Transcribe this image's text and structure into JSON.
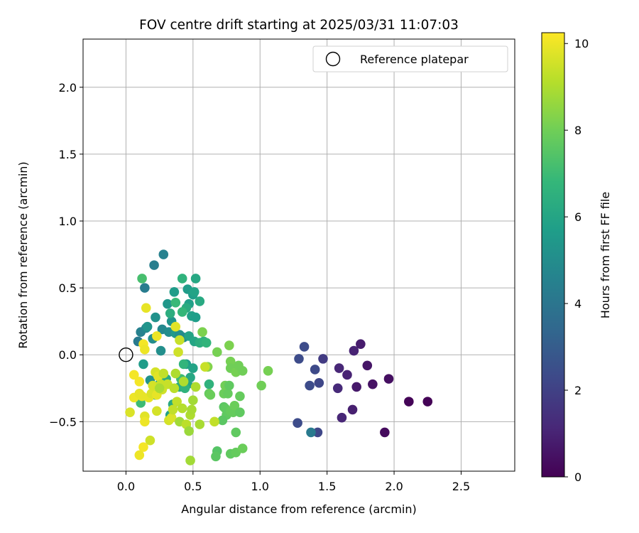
{
  "chart_data": {
    "type": "scatter",
    "title": "FOV centre drift starting at 2025/03/31 11:07:03",
    "xlabel": "Angular distance from reference (arcmin)",
    "ylabel": "Rotation from reference (arcmin)",
    "xlim": [
      -0.32,
      2.9
    ],
    "ylim": [
      -0.87,
      2.36
    ],
    "xticks": [
      0.0,
      0.5,
      1.0,
      1.5,
      2.0,
      2.5
    ],
    "xtick_labels": [
      "0.0",
      "0.5",
      "1.0",
      "1.5",
      "2.0",
      "2.5"
    ],
    "yticks": [
      -0.5,
      0.0,
      0.5,
      1.0,
      1.5,
      2.0
    ],
    "ytick_labels": [
      "−0.5",
      "0.0",
      "0.5",
      "1.0",
      "1.5",
      "2.0"
    ],
    "grid": true,
    "legend": {
      "position": "top-right",
      "entries": [
        "Reference platepar"
      ]
    },
    "reference_point": {
      "x": 0.0,
      "y": 0.0
    },
    "colorbar": {
      "label": "Hours from first FF file",
      "range": [
        0,
        10.25
      ],
      "ticks": [
        0,
        2,
        4,
        6,
        8,
        10
      ],
      "tick_labels": [
        "0",
        "2",
        "4",
        "6",
        "8",
        "10"
      ],
      "colormap": [
        "#440154",
        "#482878",
        "#3e4989",
        "#31688e",
        "#26828e",
        "#1f9e89",
        "#35b779",
        "#6ece58",
        "#b5de2b",
        "#fde725"
      ]
    },
    "series": [
      {
        "points": [
          {
            "x": 2.25,
            "y": -0.35,
            "c": 0.05
          },
          {
            "x": 2.11,
            "y": -0.35,
            "c": 0.1
          },
          {
            "x": 1.93,
            "y": -0.58,
            "c": 0.3
          },
          {
            "x": 1.96,
            "y": -0.18,
            "c": 0.4
          },
          {
            "x": 1.84,
            "y": -0.22,
            "c": 0.5
          },
          {
            "x": 1.8,
            "y": -0.08,
            "c": 0.6
          },
          {
            "x": 1.75,
            "y": 0.08,
            "c": 0.8
          },
          {
            "x": 1.72,
            "y": -0.24,
            "c": 0.7
          },
          {
            "x": 1.69,
            "y": -0.41,
            "c": 0.9
          },
          {
            "x": 1.7,
            "y": 0.03,
            "c": 1.0
          },
          {
            "x": 1.65,
            "y": -0.15,
            "c": 1.0
          },
          {
            "x": 1.61,
            "y": -0.47,
            "c": 1.1
          },
          {
            "x": 1.59,
            "y": -0.1,
            "c": 1.1
          },
          {
            "x": 1.58,
            "y": -0.25,
            "c": 1.2
          },
          {
            "x": 1.47,
            "y": -0.03,
            "c": 1.8
          },
          {
            "x": 1.44,
            "y": -0.21,
            "c": 2.2
          },
          {
            "x": 1.41,
            "y": -0.11,
            "c": 2.3
          },
          {
            "x": 1.37,
            "y": -0.23,
            "c": 2.4
          },
          {
            "x": 1.33,
            "y": 0.06,
            "c": 2.4
          },
          {
            "x": 1.29,
            "y": -0.03,
            "c": 2.4
          },
          {
            "x": 1.28,
            "y": -0.51,
            "c": 2.4
          },
          {
            "x": 1.43,
            "y": -0.58,
            "c": 2.2
          },
          {
            "x": 1.38,
            "y": -0.58,
            "c": 4.2
          },
          {
            "x": 0.28,
            "y": 0.75,
            "c": 4.5
          },
          {
            "x": 0.21,
            "y": 0.67,
            "c": 4.4
          },
          {
            "x": 0.14,
            "y": 0.5,
            "c": 4.3
          },
          {
            "x": 0.09,
            "y": 0.1,
            "c": 4.2
          },
          {
            "x": 0.11,
            "y": 0.17,
            "c": 4.5
          },
          {
            "x": 0.15,
            "y": 0.2,
            "c": 4.7
          },
          {
            "x": 0.16,
            "y": 0.21,
            "c": 5.3
          },
          {
            "x": 0.2,
            "y": 0.12,
            "c": 5.0
          },
          {
            "x": 0.22,
            "y": 0.28,
            "c": 5.2
          },
          {
            "x": 0.27,
            "y": 0.19,
            "c": 4.8
          },
          {
            "x": 0.26,
            "y": 0.03,
            "c": 5.1
          },
          {
            "x": 0.31,
            "y": 0.38,
            "c": 5.4
          },
          {
            "x": 0.32,
            "y": 0.17,
            "c": 5.0
          },
          {
            "x": 0.34,
            "y": 0.25,
            "c": 5.3
          },
          {
            "x": 0.37,
            "y": 0.16,
            "c": 5.5
          },
          {
            "x": 0.36,
            "y": 0.47,
            "c": 5.6
          },
          {
            "x": 0.4,
            "y": 0.15,
            "c": 5.1
          },
          {
            "x": 0.43,
            "y": 0.13,
            "c": 4.9
          },
          {
            "x": 0.46,
            "y": 0.49,
            "c": 5.6
          },
          {
            "x": 0.47,
            "y": 0.38,
            "c": 5.8
          },
          {
            "x": 0.5,
            "y": 0.45,
            "c": 5.7
          },
          {
            "x": 0.51,
            "y": 0.47,
            "c": 5.9
          },
          {
            "x": 0.52,
            "y": 0.57,
            "c": 6.1
          },
          {
            "x": 0.49,
            "y": 0.29,
            "c": 5.8
          },
          {
            "x": 0.52,
            "y": 0.28,
            "c": 5.7
          },
          {
            "x": 0.55,
            "y": 0.4,
            "c": 6.2
          },
          {
            "x": 0.47,
            "y": 0.14,
            "c": 5.9
          },
          {
            "x": 0.51,
            "y": 0.1,
            "c": 6.0
          },
          {
            "x": 0.55,
            "y": 0.09,
            "c": 6.4
          },
          {
            "x": 0.58,
            "y": 0.1,
            "c": 6.5
          },
          {
            "x": 0.6,
            "y": 0.09,
            "c": 6.7
          },
          {
            "x": 0.42,
            "y": 0.57,
            "c": 6.6
          },
          {
            "x": 0.45,
            "y": 0.35,
            "c": 6.3
          },
          {
            "x": 0.42,
            "y": 0.32,
            "c": 6.8
          },
          {
            "x": 0.33,
            "y": 0.31,
            "c": 6.4
          },
          {
            "x": 0.37,
            "y": 0.39,
            "c": 6.9
          },
          {
            "x": 0.12,
            "y": 0.57,
            "c": 7.2
          },
          {
            "x": 0.13,
            "y": -0.07,
            "c": 5.6
          },
          {
            "x": 0.18,
            "y": -0.19,
            "c": 5.2
          },
          {
            "x": 0.22,
            "y": -0.3,
            "c": 6.1
          },
          {
            "x": 0.25,
            "y": -0.22,
            "c": 6.0
          },
          {
            "x": 0.3,
            "y": -0.18,
            "c": 6.3
          },
          {
            "x": 0.33,
            "y": -0.45,
            "c": 5.8
          },
          {
            "x": 0.35,
            "y": -0.37,
            "c": 6.2
          },
          {
            "x": 0.4,
            "y": -0.24,
            "c": 6.3
          },
          {
            "x": 0.45,
            "y": -0.07,
            "c": 5.7
          },
          {
            "x": 0.46,
            "y": -0.22,
            "c": 6.0
          },
          {
            "x": 0.48,
            "y": -0.17,
            "c": 6.1
          },
          {
            "x": 0.5,
            "y": -0.1,
            "c": 5.9
          },
          {
            "x": 0.44,
            "y": -0.25,
            "c": 6.6
          },
          {
            "x": 0.43,
            "y": -0.07,
            "c": 6.7
          },
          {
            "x": 0.41,
            "y": -0.18,
            "c": 7.0
          },
          {
            "x": 0.62,
            "y": -0.22,
            "c": 6.6
          },
          {
            "x": 0.11,
            "y": -0.36,
            "c": 7.0
          },
          {
            "x": 0.57,
            "y": 0.17,
            "c": 8.2
          },
          {
            "x": 0.61,
            "y": -0.09,
            "c": 8.3
          },
          {
            "x": 0.62,
            "y": -0.29,
            "c": 7.8
          },
          {
            "x": 0.63,
            "y": -0.3,
            "c": 7.9
          },
          {
            "x": 0.68,
            "y": 0.02,
            "c": 8.1
          },
          {
            "x": 0.73,
            "y": -0.29,
            "c": 7.9
          },
          {
            "x": 0.74,
            "y": -0.23,
            "c": 8.0
          },
          {
            "x": 0.76,
            "y": -0.29,
            "c": 7.8
          },
          {
            "x": 0.77,
            "y": 0.07,
            "c": 8.2
          },
          {
            "x": 0.78,
            "y": -0.05,
            "c": 8.1
          },
          {
            "x": 0.78,
            "y": -0.1,
            "c": 8.0
          },
          {
            "x": 0.77,
            "y": -0.23,
            "c": 7.7
          },
          {
            "x": 0.73,
            "y": -0.39,
            "c": 7.6
          },
          {
            "x": 0.74,
            "y": -0.4,
            "c": 7.7
          },
          {
            "x": 0.75,
            "y": -0.45,
            "c": 7.7
          },
          {
            "x": 0.78,
            "y": -0.42,
            "c": 7.8
          },
          {
            "x": 0.8,
            "y": -0.43,
            "c": 7.8
          },
          {
            "x": 0.81,
            "y": -0.38,
            "c": 7.9
          },
          {
            "x": 0.82,
            "y": -0.13,
            "c": 8.1
          },
          {
            "x": 0.84,
            "y": -0.08,
            "c": 8.0
          },
          {
            "x": 0.85,
            "y": -0.31,
            "c": 7.8
          },
          {
            "x": 0.85,
            "y": -0.43,
            "c": 7.7
          },
          {
            "x": 0.82,
            "y": -0.58,
            "c": 7.7
          },
          {
            "x": 0.72,
            "y": -0.49,
            "c": 7.6
          },
          {
            "x": 0.68,
            "y": -0.72,
            "c": 7.5
          },
          {
            "x": 0.67,
            "y": -0.76,
            "c": 7.6
          },
          {
            "x": 0.78,
            "y": -0.74,
            "c": 7.7
          },
          {
            "x": 0.82,
            "y": -0.73,
            "c": 7.8
          },
          {
            "x": 0.87,
            "y": -0.7,
            "c": 7.9
          },
          {
            "x": 1.01,
            "y": -0.23,
            "c": 8.0
          },
          {
            "x": 1.06,
            "y": -0.12,
            "c": 8.1
          },
          {
            "x": 0.87,
            "y": -0.12,
            "c": 8.0
          },
          {
            "x": 0.15,
            "y": 0.35,
            "c": 9.9
          },
          {
            "x": 0.23,
            "y": 0.14,
            "c": 10.0
          },
          {
            "x": 0.37,
            "y": 0.21,
            "c": 9.8
          },
          {
            "x": 0.4,
            "y": 0.11,
            "c": 9.4
          },
          {
            "x": 0.39,
            "y": 0.02,
            "c": 9.5
          },
          {
            "x": 0.13,
            "y": 0.08,
            "c": 10.1
          },
          {
            "x": 0.14,
            "y": 0.04,
            "c": 10.0
          },
          {
            "x": 0.06,
            "y": -0.15,
            "c": 10.1
          },
          {
            "x": 0.06,
            "y": -0.32,
            "c": 10.0
          },
          {
            "x": 0.03,
            "y": -0.43,
            "c": 9.7
          },
          {
            "x": 0.1,
            "y": -0.2,
            "c": 10.1
          },
          {
            "x": 0.1,
            "y": -0.29,
            "c": 9.9
          },
          {
            "x": 0.12,
            "y": -0.31,
            "c": 9.9
          },
          {
            "x": 0.14,
            "y": -0.46,
            "c": 9.8
          },
          {
            "x": 0.14,
            "y": -0.5,
            "c": 10.0
          },
          {
            "x": 0.17,
            "y": -0.32,
            "c": 9.9
          },
          {
            "x": 0.19,
            "y": -0.29,
            "c": 9.7
          },
          {
            "x": 0.2,
            "y": -0.23,
            "c": 9.6
          },
          {
            "x": 0.22,
            "y": -0.13,
            "c": 9.6
          },
          {
            "x": 0.23,
            "y": -0.3,
            "c": 9.9
          },
          {
            "x": 0.23,
            "y": -0.42,
            "c": 9.6
          },
          {
            "x": 0.24,
            "y": -0.16,
            "c": 9.8
          },
          {
            "x": 0.26,
            "y": -0.22,
            "c": 9.4
          },
          {
            "x": 0.27,
            "y": -0.26,
            "c": 9.5
          },
          {
            "x": 0.28,
            "y": -0.14,
            "c": 9.3
          },
          {
            "x": 0.31,
            "y": -0.22,
            "c": 9.4
          },
          {
            "x": 0.32,
            "y": -0.49,
            "c": 9.6
          },
          {
            "x": 0.34,
            "y": -0.47,
            "c": 9.7
          },
          {
            "x": 0.35,
            "y": -0.41,
            "c": 9.3
          },
          {
            "x": 0.36,
            "y": -0.25,
            "c": 9.2
          },
          {
            "x": 0.37,
            "y": -0.14,
            "c": 9.0
          },
          {
            "x": 0.38,
            "y": -0.35,
            "c": 9.3
          },
          {
            "x": 0.4,
            "y": -0.5,
            "c": 8.8
          },
          {
            "x": 0.42,
            "y": -0.4,
            "c": 9.1
          },
          {
            "x": 0.43,
            "y": -0.2,
            "c": 9.0
          },
          {
            "x": 0.45,
            "y": -0.52,
            "c": 9.2
          },
          {
            "x": 0.47,
            "y": -0.57,
            "c": 8.7
          },
          {
            "x": 0.48,
            "y": -0.45,
            "c": 9.0
          },
          {
            "x": 0.49,
            "y": -0.41,
            "c": 8.9
          },
          {
            "x": 0.5,
            "y": -0.34,
            "c": 8.8
          },
          {
            "x": 0.52,
            "y": -0.24,
            "c": 9.0
          },
          {
            "x": 0.55,
            "y": -0.52,
            "c": 8.9
          },
          {
            "x": 0.48,
            "y": -0.79,
            "c": 8.8
          },
          {
            "x": 0.25,
            "y": -0.25,
            "c": 8.9
          },
          {
            "x": 0.18,
            "y": -0.64,
            "c": 9.5
          },
          {
            "x": 0.13,
            "y": -0.69,
            "c": 10.1
          },
          {
            "x": 0.1,
            "y": -0.75,
            "c": 10.0
          },
          {
            "x": 0.59,
            "y": -0.09,
            "c": 9.4
          },
          {
            "x": 0.66,
            "y": -0.5,
            "c": 9.3
          }
        ]
      }
    ]
  }
}
